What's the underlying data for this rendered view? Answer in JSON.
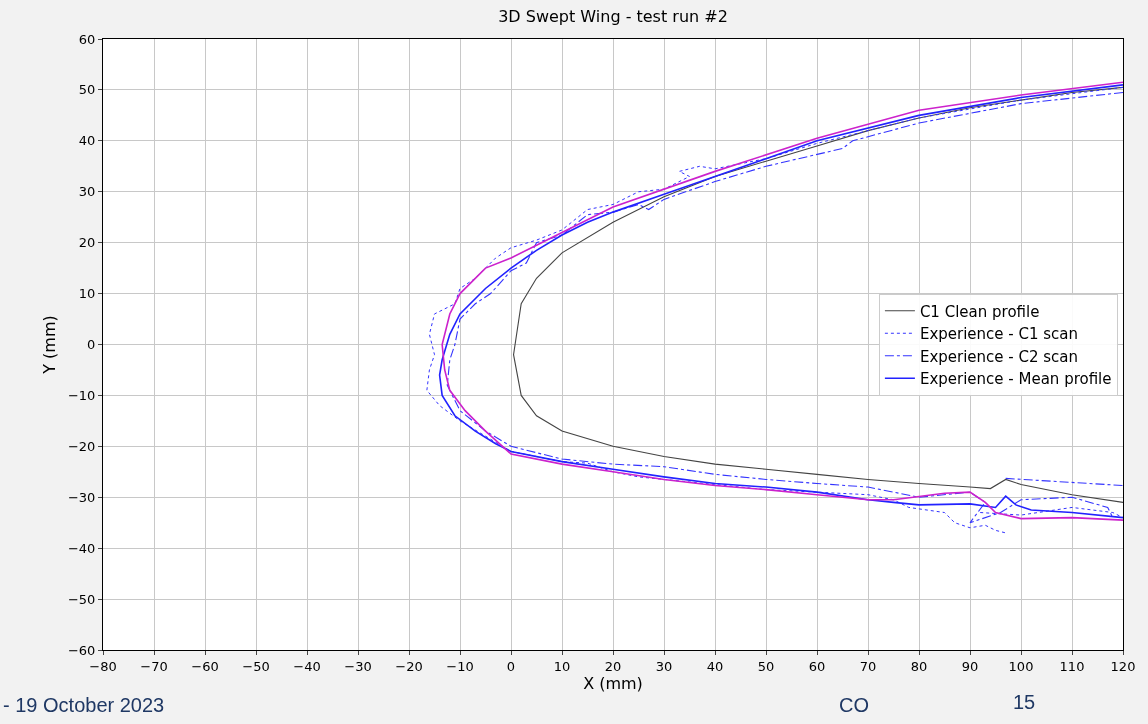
{
  "chart_data": {
    "type": "line",
    "title": "3D Swept Wing - test run #2",
    "xlabel": "X (mm)",
    "ylabel": "Y (mm)",
    "xlim": [
      -80,
      120
    ],
    "xticks": [
      -80,
      -70,
      -60,
      -50,
      -40,
      -30,
      -20,
      -10,
      0,
      10,
      20,
      30,
      40,
      50,
      60,
      70,
      80,
      90,
      100,
      110,
      120
    ],
    "ylim": [
      -60,
      60
    ],
    "yticks": [
      -60,
      -50,
      -40,
      -30,
      -20,
      -10,
      0,
      10,
      20,
      30,
      40,
      50,
      60
    ],
    "grid": true,
    "legend": "right",
    "marker": "none",
    "series": [
      {
        "name": "C1 Clean profile",
        "color": "#444444",
        "line_style": "solid",
        "x": [
          120,
          110,
          100,
          90,
          80,
          70,
          60,
          50,
          40,
          30,
          20,
          10,
          5,
          2,
          0.5,
          2,
          5,
          10,
          20,
          30,
          40,
          50,
          60,
          70,
          80,
          90,
          94,
          97,
          100,
          110,
          120
        ],
        "values": [
          50.5,
          49.5,
          48,
          46.5,
          44.5,
          42,
          39,
          36,
          33,
          29,
          24,
          18,
          13,
          8,
          -2,
          -10,
          -14,
          -17,
          -20,
          -22,
          -23.5,
          -24.5,
          -25.5,
          -26.5,
          -27.3,
          -28,
          -28.3,
          -26.5,
          -27.5,
          -29.5,
          -31
        ]
      },
      {
        "name": "Experience - C1 scan",
        "color": "#3333ff",
        "line_style": "dotted",
        "x": [
          120,
          100,
          80,
          60,
          50,
          40,
          37,
          33,
          35,
          30,
          25,
          20,
          15,
          10,
          5,
          0,
          -3,
          -7,
          -10,
          -11,
          -15,
          -16,
          -15,
          -16,
          -16.5,
          -14,
          -10,
          -5,
          0,
          5,
          10,
          15,
          20,
          25,
          30,
          40,
          50,
          60,
          70,
          75,
          78,
          85,
          87,
          90,
          93,
          95,
          97,
          null,
          92,
          100,
          110,
          118,
          120
        ],
        "values": [
          50.5,
          48,
          44.5,
          39.5,
          36.5,
          34.5,
          35,
          34,
          33,
          30.5,
          30,
          27.5,
          26.5,
          22.5,
          20.5,
          19,
          17,
          13,
          11,
          8,
          6,
          2,
          -2,
          -5,
          -9,
          -12,
          -15,
          -18,
          -21,
          -22,
          -23,
          -23.3,
          -25,
          -26,
          -26.5,
          -27.5,
          -28.5,
          -29,
          -29.5,
          -30.5,
          -32,
          -33,
          -35,
          -36,
          -35.5,
          -36.5,
          -37,
          null,
          -33,
          -33.5,
          -32,
          -33,
          -34
        ]
      },
      {
        "name": "Experience - C2 scan",
        "color": "#3333ff",
        "line_style": "dashdot",
        "x": [
          120,
          100,
          80,
          67,
          65,
          50,
          40,
          30,
          27,
          25,
          20,
          15,
          10,
          5,
          3,
          0,
          -4,
          -7,
          -10,
          -11,
          -12,
          -12.5,
          -10,
          -5,
          0,
          10,
          20,
          30,
          40,
          50,
          60,
          70,
          75,
          80,
          90,
          93,
          90,
          96,
          100,
          110,
          117,
          118,
          null,
          97,
          120
        ],
        "values": [
          49.5,
          47.3,
          43.5,
          40,
          38.5,
          35,
          32,
          28.5,
          26.5,
          27.5,
          26,
          25.5,
          21.5,
          20,
          16,
          14.5,
          10,
          8,
          5,
          0,
          -3,
          -8,
          -13,
          -17,
          -20,
          -22.5,
          -23.5,
          -24,
          -25.5,
          -26.5,
          -27.3,
          -28,
          -29,
          -30,
          -29,
          -31,
          -35,
          -33,
          -30.5,
          -30,
          -32,
          -34,
          null,
          -26.3,
          -27.7
        ]
      },
      {
        "name": "Experience - Mean profile",
        "color": "#2222ff",
        "line_style": "solid",
        "x": [
          120,
          100,
          80,
          60,
          40,
          30,
          20,
          15,
          10,
          5,
          0,
          -5,
          -10,
          -12,
          -13.5,
          -14,
          -13.5,
          -11,
          -7,
          -3,
          0,
          10,
          20,
          30,
          40,
          50,
          60,
          70,
          75,
          80,
          90,
          95,
          97,
          99,
          102,
          110,
          120
        ],
        "values": [
          51,
          48.5,
          45,
          40,
          33,
          29.5,
          26,
          24,
          21.5,
          18.5,
          15,
          11,
          6,
          2,
          -3,
          -6,
          -10,
          -14,
          -17,
          -19.5,
          -21,
          -23,
          -24.5,
          -26,
          -27.3,
          -28,
          -29,
          -30.5,
          -31,
          -31.5,
          -31.3,
          -32,
          -29.8,
          -31.5,
          -32.5,
          -33,
          -34
        ]
      },
      {
        "color": "#cc22cc",
        "line_style": "solid",
        "x": [
          120,
          100,
          80,
          60,
          40,
          20,
          10,
          5,
          0,
          -5,
          -10,
          -12,
          -13.5,
          -13,
          -12,
          -9,
          -5,
          0,
          10,
          20,
          30,
          40,
          50,
          60,
          70,
          75,
          85,
          90,
          93,
          95,
          100,
          110,
          120
        ],
        "values": [
          51.5,
          49,
          46,
          40.5,
          34,
          27,
          22,
          19.5,
          17,
          15,
          10,
          6,
          0,
          -5,
          -9,
          -13,
          -17,
          -21.5,
          -23.5,
          -25,
          -26.5,
          -27.7,
          -28.5,
          -29.5,
          -30.5,
          -30.5,
          -29.2,
          -29,
          -31,
          -33,
          -34.2,
          -34,
          -34.5
        ]
      }
    ],
    "annotations": [
      "- 19 October 2023",
      "CO",
      "15"
    ]
  }
}
